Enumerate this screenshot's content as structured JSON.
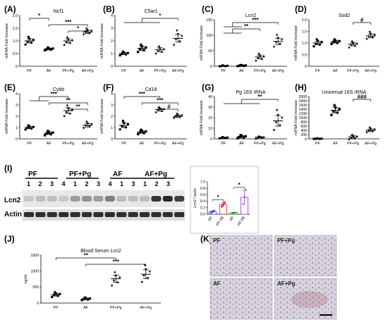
{
  "panels": [
    {
      "id": "A",
      "title": "Ncf1",
      "ylabel": "mRNA Fold Increase",
      "ylim": [
        0,
        2
      ],
      "yticks": [
        "0",
        "0.5",
        "1.0",
        "1.5",
        "2.0"
      ],
      "groups": [
        "PF",
        "AF",
        "PF+Pg",
        "AF+Pg"
      ],
      "means": [
        1.0,
        0.68,
        1.0,
        1.35
      ],
      "sem": [
        0.08,
        0.03,
        0.08,
        0.06
      ],
      "sig": [
        {
          "a": 0,
          "b": 1,
          "label": "*"
        },
        {
          "a": 1,
          "b": 3,
          "label": "***"
        },
        {
          "a": 2,
          "b": 3,
          "label": "*"
        }
      ]
    },
    {
      "id": "B",
      "title": "C5ar1",
      "ylabel": "mRNA Fold Increase",
      "ylim": [
        0,
        4
      ],
      "yticks": [
        "0",
        "1",
        "2",
        "3",
        "4"
      ],
      "groups": [
        "PF",
        "AF",
        "PF+Pg",
        "AF+Pg"
      ],
      "means": [
        1.0,
        1.4,
        1.3,
        2.2
      ],
      "sem": [
        0.08,
        0.15,
        0.15,
        0.3
      ],
      "sig": [
        {
          "a": 0,
          "b": 3,
          "label": "*",
          "joined": [
            0,
            1,
            2
          ]
        }
      ]
    },
    {
      "id": "C",
      "title": "Lcn2",
      "ylabel": "mRNA Fold Increase",
      "ylim": [
        0,
        150
      ],
      "yticks": [
        "0",
        "50",
        "100",
        "150"
      ],
      "groups": [
        "PF",
        "AF",
        "PF+Pg",
        "AF+Pg"
      ],
      "means": [
        1,
        2,
        30,
        80
      ],
      "sem": [
        0.5,
        0.8,
        6,
        10
      ],
      "sig": [
        {
          "a": 0,
          "b": 3,
          "label": "***",
          "joined": [
            0,
            1
          ]
        },
        {
          "a": 0,
          "b": 2,
          "label": "**",
          "joined": [
            0,
            1
          ]
        }
      ]
    },
    {
      "id": "D",
      "title": "Sod2",
      "ylabel": "mRNA Fold Increase",
      "ylim": [
        0,
        2
      ],
      "yticks": [
        "0",
        "0.5",
        "1.0",
        "1.5",
        "2.0"
      ],
      "groups": [
        "PF",
        "AF",
        "PF+Pg",
        "AF+Pg"
      ],
      "means": [
        1.0,
        1.05,
        0.95,
        1.3
      ],
      "sem": [
        0.08,
        0.05,
        0.07,
        0.08
      ],
      "sig": [
        {
          "a": 2,
          "b": 3,
          "label": "#"
        }
      ]
    },
    {
      "id": "E",
      "title": "Cybb",
      "ylabel": "mRNA Fold Increase",
      "ylim": [
        0,
        4
      ],
      "yticks": [
        "0",
        "1",
        "2",
        "3",
        "4"
      ],
      "groups": [
        "PF",
        "AF",
        "PF+Pg",
        "AF+Pg"
      ],
      "means": [
        1.0,
        0.5,
        2.5,
        1.2
      ],
      "sem": [
        0.1,
        0.1,
        0.25,
        0.15
      ],
      "sig": [
        {
          "a": 0,
          "b": 2,
          "label": "***",
          "joined": [
            0,
            1
          ]
        },
        {
          "a": 1,
          "b": 3,
          "label": "**"
        },
        {
          "a": 2,
          "b": 3,
          "label": "**"
        }
      ]
    },
    {
      "id": "F",
      "title": "Cd18",
      "ylabel": "mRNA Fold Increase",
      "ylim": [
        0,
        4
      ],
      "yticks": [
        "0",
        "1",
        "2",
        "3",
        "4"
      ],
      "groups": [
        "PF",
        "AF",
        "PF+Pg",
        "AF+Pg"
      ],
      "means": [
        1.2,
        0.6,
        2.6,
        2.0
      ],
      "sem": [
        0.2,
        0.1,
        0.12,
        0.1
      ],
      "sig": [
        {
          "a": 0,
          "b": 2,
          "label": "***"
        },
        {
          "a": 1,
          "b": 3,
          "label": "***"
        },
        {
          "a": 2,
          "b": 3,
          "label": "#"
        }
      ]
    },
    {
      "id": "G",
      "title": "Pg 16S rRNA",
      "ylabel": "mRNA Fold Increase",
      "ylim": [
        0,
        40
      ],
      "yticks": [
        "0",
        "10",
        "20",
        "30",
        "40"
      ],
      "groups": [
        "PF",
        "AF",
        "PF+Pg",
        "AF+Pg"
      ],
      "means": [
        1,
        2,
        1.5,
        17
      ],
      "sem": [
        0.3,
        0.8,
        0.6,
        5
      ],
      "sig": [
        {
          "a": 0,
          "b": 3,
          "label": "**",
          "joined": [
            0,
            1,
            2
          ]
        }
      ]
    },
    {
      "id": "H",
      "title": "Universal 16S rRNA",
      "ylabel": "mRNA Fold Increase",
      "ylim": [
        0,
        2000
      ],
      "yticks": [
        "0",
        "200",
        "400",
        "600",
        "800",
        "1000",
        "1200",
        "1400",
        "1600",
        "1800",
        "2000"
      ],
      "groups": [
        "PF",
        "AF",
        "PF+Pg",
        "AF+Pg"
      ],
      "means": [
        1,
        1350,
        90,
        400
      ],
      "sem": [
        1,
        120,
        60,
        60
      ],
      "sig": [
        {
          "a": 2,
          "b": 3,
          "label": "###"
        }
      ]
    }
  ],
  "blot": {
    "id": "I",
    "groups": [
      "PF",
      "PF+Pg",
      "AF",
      "AF+Pg"
    ],
    "lanes": [
      [
        "1",
        "2",
        "3",
        "4"
      ],
      [
        "1",
        "2",
        "3",
        "4"
      ],
      [
        "1",
        "3",
        "1"
      ],
      [
        "2",
        "3"
      ]
    ],
    "rows": [
      "Lcn2",
      "Actin"
    ],
    "quant": {
      "ylabel": "Lcn2 / actin",
      "ylim": [
        0,
        1.0
      ],
      "yticks": [
        "0.0",
        "0.2",
        "0.4",
        "0.6",
        "0.8",
        "1.0"
      ],
      "groups": [
        "PF",
        "PF-pg",
        "AF",
        "AF-pg"
      ],
      "means": [
        0.08,
        0.3,
        0.05,
        0.52
      ],
      "sem": [
        0.03,
        0.06,
        0.01,
        0.22
      ],
      "colors": [
        "#3a55d6",
        "#d63a3a",
        "#2a9a2a",
        "#b03ad6"
      ],
      "sig": [
        {
          "a": 0,
          "b": 1,
          "label": "*"
        },
        {
          "a": 2,
          "b": 3,
          "label": "*"
        }
      ]
    }
  },
  "serum": {
    "id": "J",
    "title": "Blood Serum Lcn2",
    "ylabel": "ng/ml",
    "ylim": [
      0,
      1500
    ],
    "yticks": [
      "0",
      "500",
      "1000",
      "1500"
    ],
    "groups": [
      "PF",
      "AF",
      "PF+Pg",
      "AF+Pg"
    ],
    "means": [
      260,
      130,
      760,
      900
    ],
    "sem": [
      40,
      20,
      110,
      140
    ],
    "sig": [
      {
        "a": 0,
        "b": 2,
        "label": "**"
      },
      {
        "a": 1,
        "b": 3,
        "label": "***"
      }
    ]
  },
  "histology": {
    "id": "K",
    "labels": [
      "PF",
      "PF+Pg",
      "AF",
      "AF+Pg"
    ]
  }
}
